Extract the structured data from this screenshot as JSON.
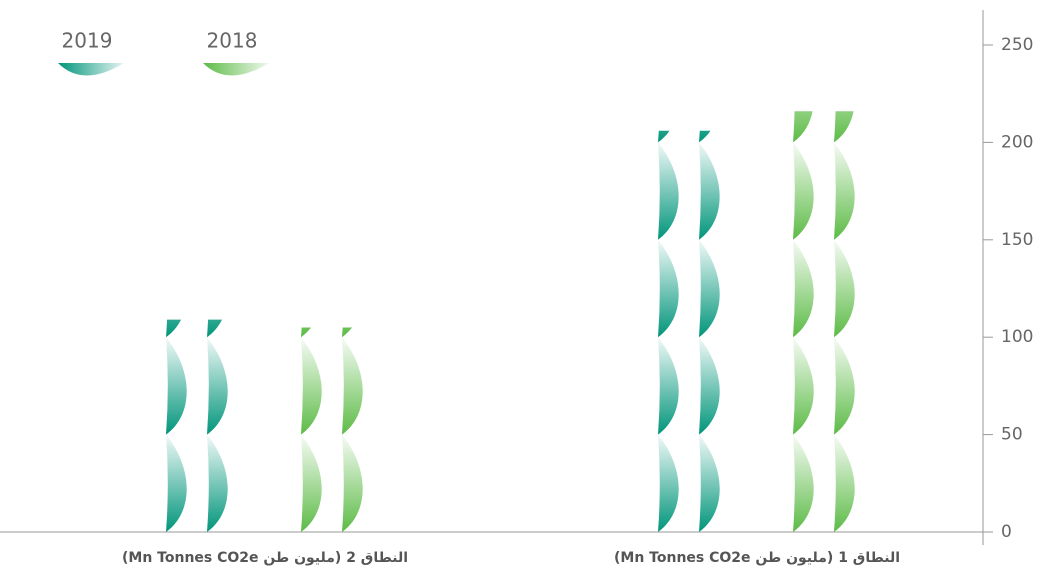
{
  "chart_data": {
    "type": "bar",
    "categories": [
      "النطاق 1 (مليون طن Mn Tonnes CO2e)",
      "النطاق 2 (مليون طن Mn Tonnes CO2e)"
    ],
    "series": [
      {
        "name": "2019",
        "color": "#00957a",
        "values": [
          206,
          109
        ]
      },
      {
        "name": "2018",
        "color": "#5cbb46",
        "values": [
          216,
          105
        ]
      }
    ],
    "ylim": [
      0,
      250
    ],
    "yticks": [
      0,
      50,
      100,
      150,
      200,
      250
    ],
    "grid": false
  }
}
